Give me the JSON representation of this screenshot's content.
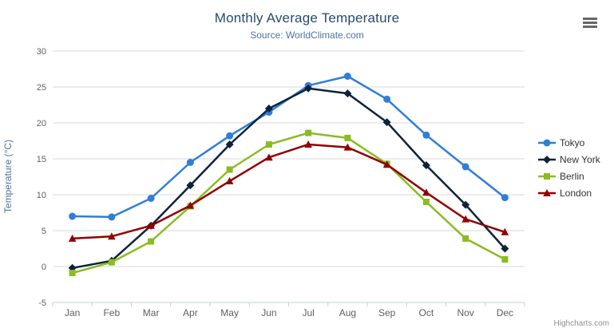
{
  "header": {
    "menu_icon": "hamburger-icon"
  },
  "chart_data": {
    "type": "line",
    "title": "Monthly Average Temperature",
    "subtitle": "Source: WorldClimate.com",
    "xlabel": "",
    "ylabel": "Temperature (°C)",
    "ylim": [
      -5,
      30
    ],
    "ytick_step": 5,
    "grid": "horizontal",
    "legend_position": "right",
    "categories": [
      "Jan",
      "Feb",
      "Mar",
      "Apr",
      "May",
      "Jun",
      "Jul",
      "Aug",
      "Sep",
      "Oct",
      "Nov",
      "Dec"
    ],
    "series": [
      {
        "name": "Tokyo",
        "color": "#2f7ed8",
        "marker": "circle",
        "values": [
          7.0,
          6.9,
          9.5,
          14.5,
          18.2,
          21.5,
          25.2,
          26.5,
          23.3,
          18.3,
          13.9,
          9.6
        ]
      },
      {
        "name": "New York",
        "color": "#0d233a",
        "marker": "diamond",
        "values": [
          -0.2,
          0.8,
          5.7,
          11.3,
          17.0,
          22.0,
          24.8,
          24.1,
          20.1,
          14.1,
          8.6,
          2.5
        ]
      },
      {
        "name": "Berlin",
        "color": "#8bbc21",
        "marker": "square",
        "values": [
          -0.9,
          0.6,
          3.5,
          8.4,
          13.5,
          17.0,
          18.6,
          17.9,
          14.3,
          9.0,
          3.9,
          1.0
        ]
      },
      {
        "name": "London",
        "color": "#910000",
        "marker": "triangle",
        "values": [
          3.9,
          4.2,
          5.7,
          8.5,
          11.9,
          15.2,
          17.0,
          16.6,
          14.2,
          10.3,
          6.6,
          4.8
        ]
      }
    ],
    "axis_colors": {
      "grid_line": "#d8d8d8",
      "axis_line": "#c0d0e0",
      "tick_label": "#606060",
      "axis_title": "#4d759e"
    }
  },
  "credits": {
    "label": "Highcharts.com"
  }
}
